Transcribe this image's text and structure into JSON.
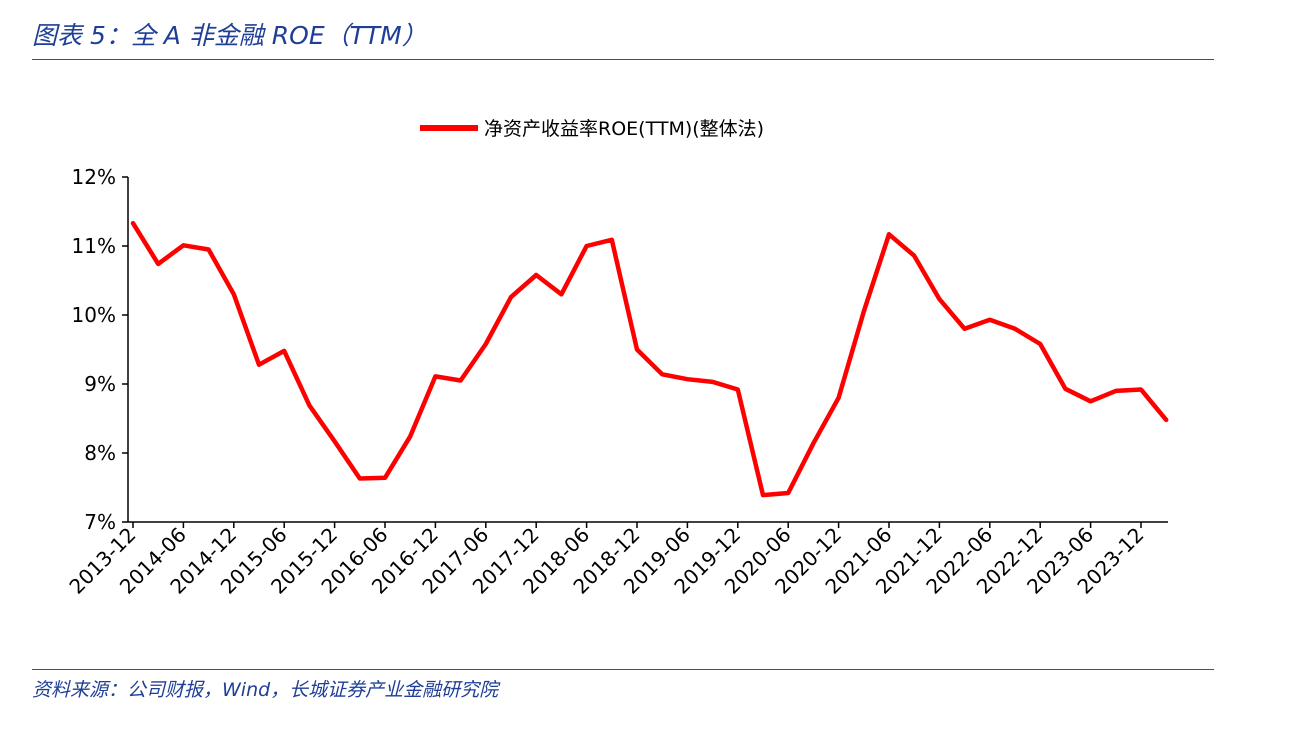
{
  "figure": {
    "title": "图表 5：全 A 非金融 ROE（TTM）",
    "source": "资料来源：公司财报，Wind，长城证券产业金融研究院"
  },
  "colors": {
    "series": "#ff0000",
    "text_accent": "#1f3f96",
    "axis": "#000000"
  },
  "chart_data": {
    "type": "line",
    "title": "",
    "xlabel": "",
    "ylabel": "",
    "ylim": [
      7,
      12
    ],
    "yticks": [
      "7%",
      "8%",
      "9%",
      "10%",
      "11%",
      "12%"
    ],
    "grid": false,
    "legend_position": "top-center",
    "x": [
      "2013-12",
      "2014-03",
      "2014-06",
      "2014-09",
      "2014-12",
      "2015-03",
      "2015-06",
      "2015-09",
      "2015-12",
      "2016-03",
      "2016-06",
      "2016-09",
      "2016-12",
      "2017-03",
      "2017-06",
      "2017-09",
      "2017-12",
      "2018-03",
      "2018-06",
      "2018-09",
      "2018-12",
      "2019-03",
      "2019-06",
      "2019-09",
      "2019-12",
      "2020-03",
      "2020-06",
      "2020-09",
      "2020-12",
      "2021-03",
      "2021-06",
      "2021-09",
      "2021-12",
      "2022-03",
      "2022-06",
      "2022-09",
      "2022-12",
      "2023-03",
      "2023-06",
      "2023-09",
      "2023-12",
      "2024-03"
    ],
    "xtick_labels": [
      "2013-12",
      "2014-06",
      "2014-12",
      "2015-06",
      "2015-12",
      "2016-06",
      "2016-12",
      "2017-06",
      "2017-12",
      "2018-06",
      "2018-12",
      "2019-06",
      "2019-12",
      "2020-06",
      "2020-12",
      "2021-06",
      "2021-12",
      "2022-06",
      "2022-12",
      "2023-06",
      "2023-12"
    ],
    "series": [
      {
        "name": "净资产收益率ROE(TTM)(整体法)",
        "color": "#ff0000",
        "values": [
          11.33,
          10.74,
          11.01,
          10.95,
          10.3,
          9.28,
          9.48,
          8.69,
          8.17,
          7.63,
          7.64,
          8.24,
          9.11,
          9.05,
          9.58,
          10.26,
          10.58,
          10.3,
          11.0,
          11.09,
          9.5,
          9.14,
          9.07,
          9.03,
          8.92,
          7.39,
          7.42,
          8.14,
          8.8,
          10.05,
          11.17,
          10.86,
          10.23,
          9.8,
          9.93,
          9.8,
          9.58,
          8.93,
          8.75,
          8.9,
          8.92,
          8.48
        ]
      }
    ]
  }
}
